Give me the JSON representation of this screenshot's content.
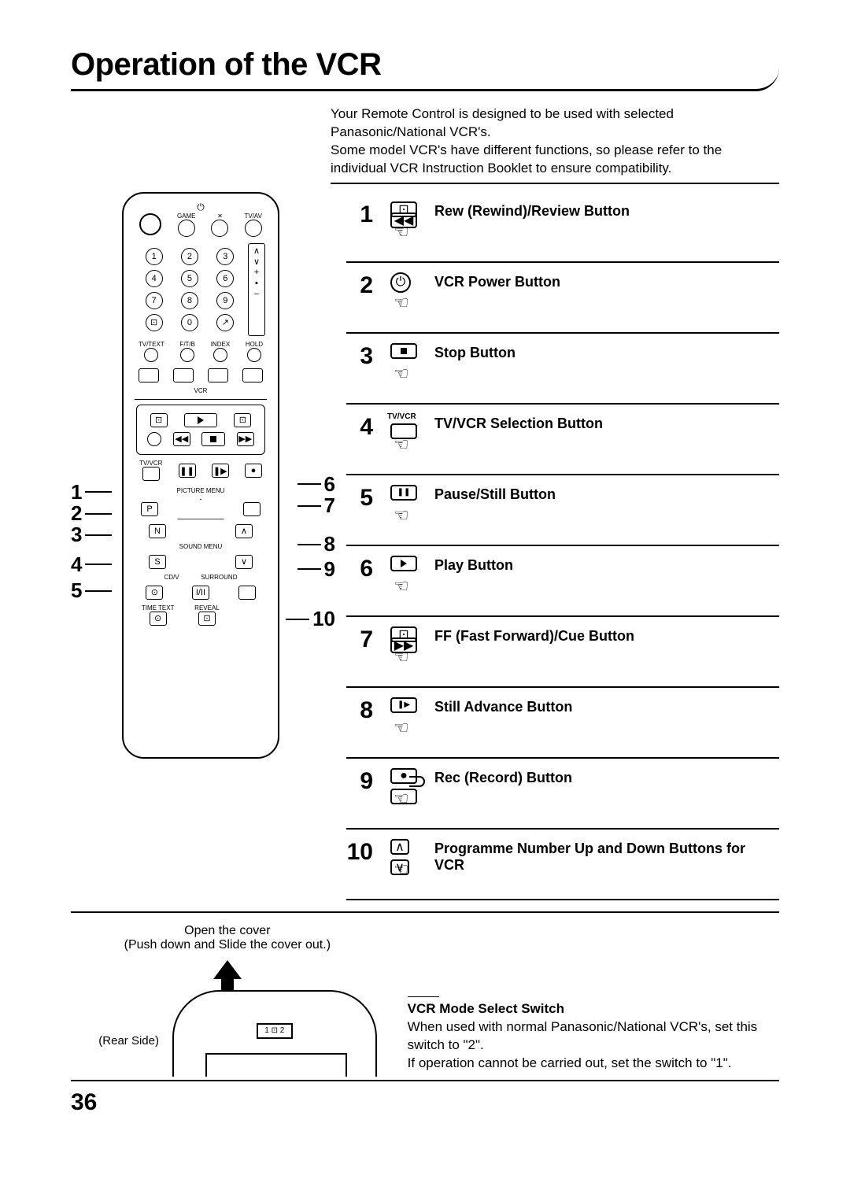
{
  "page_title": "Operation of the VCR",
  "intro_text": "Your Remote Control is designed to be used with selected Panasonic/National VCR's.\nSome model VCR's have different functions, so please refer to the individual VCR Instruction Booklet to ensure compatibility.",
  "remote_labels": {
    "game": "GAME",
    "mute": "✕",
    "tvav": "TV/AV",
    "tvtext": "TV/TEXT",
    "ftb": "F/T/B",
    "index": "INDEX",
    "hold": "HOLD",
    "vcr": "VCR",
    "tvvcr": "TV/VCR",
    "picture_menu": "PICTURE MENU",
    "sound_menu": "SOUND MENU",
    "surround": "SURROUND",
    "time_text": "TIME TEXT",
    "reveal": "REVEAL",
    "n": "N",
    "s": "S",
    "p": "P",
    "cdv": "CD/V"
  },
  "left_callouts": [
    "1",
    "2",
    "3",
    "4",
    "5"
  ],
  "right_callouts": [
    "6",
    "7",
    "8",
    "9",
    "10"
  ],
  "buttons": [
    {
      "num": "1",
      "label": "Rew (Rewind)/Review Button",
      "icon": "rew"
    },
    {
      "num": "2",
      "label": "VCR Power Button",
      "icon": "power"
    },
    {
      "num": "3",
      "label": "Stop Button",
      "icon": "stop"
    },
    {
      "num": "4",
      "label": "TV/VCR Selection Button",
      "icon": "tvvcr"
    },
    {
      "num": "5",
      "label": "Pause/Still Button",
      "icon": "pause"
    },
    {
      "num": "6",
      "label": "Play Button",
      "icon": "play"
    },
    {
      "num": "7",
      "label": "FF (Fast Forward)/Cue Button",
      "icon": "ff"
    },
    {
      "num": "8",
      "label": "Still Advance Button",
      "icon": "stilladv"
    },
    {
      "num": "9",
      "label": "Rec (Record) Button",
      "icon": "rec"
    },
    {
      "num": "10",
      "label": "Programme Number Up and Down Buttons for VCR",
      "icon": "updown"
    }
  ],
  "cover_text_1": "Open the cover",
  "cover_text_2": "(Push down and Slide the cover out.)",
  "rear_side_label": "(Rear Side)",
  "switch_text": "1 ⊡ 2",
  "mode_switch": {
    "heading": "VCR Mode Select Switch",
    "body": "When used with normal Panasonic/National VCR's, set this switch to \"2\".\nIf operation cannot be carried out, set the switch to \"1\"."
  },
  "page_number": "36"
}
